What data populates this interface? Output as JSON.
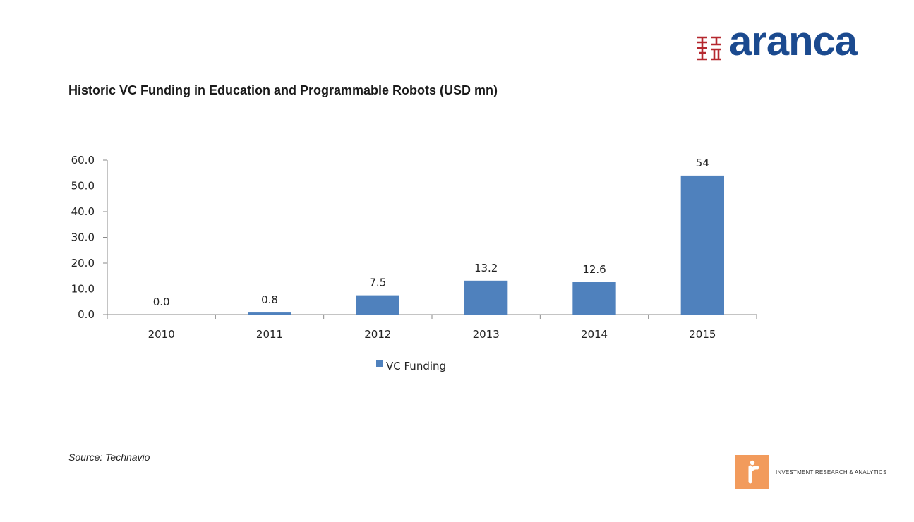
{
  "brand": {
    "name": "aranca",
    "primary_color": "#1b4a8f",
    "mark_color": "#b5282f",
    "mark_icon": "square-seal-icon"
  },
  "slide": {
    "title": "Historic VC Funding in Education and Programmable Robots (USD mn)",
    "source": "Source: Technavio"
  },
  "footer": {
    "tagline": "INVESTMENT RESEARCH & ANALYTICS",
    "badge_color": "#f29b5c",
    "badge_icon": "r-letter-icon"
  },
  "chart_data": {
    "type": "bar",
    "title": "",
    "categories": [
      "2010",
      "2011",
      "2012",
      "2013",
      "2014",
      "2015"
    ],
    "series": [
      {
        "name": "VC Funding",
        "color": "#4f81bd",
        "values": [
          0.0,
          0.8,
          7.5,
          13.2,
          12.6,
          54
        ],
        "labels": [
          "0.0",
          "0.8",
          "7.5",
          "13.2",
          "12.6",
          "54"
        ]
      }
    ],
    "ylim": [
      0,
      60
    ],
    "yticks": [
      "0.0",
      "10.0",
      "20.0",
      "30.0",
      "40.0",
      "50.0",
      "60.0"
    ],
    "grid": false,
    "legend": "bottom",
    "xlabel": "",
    "ylabel": ""
  }
}
